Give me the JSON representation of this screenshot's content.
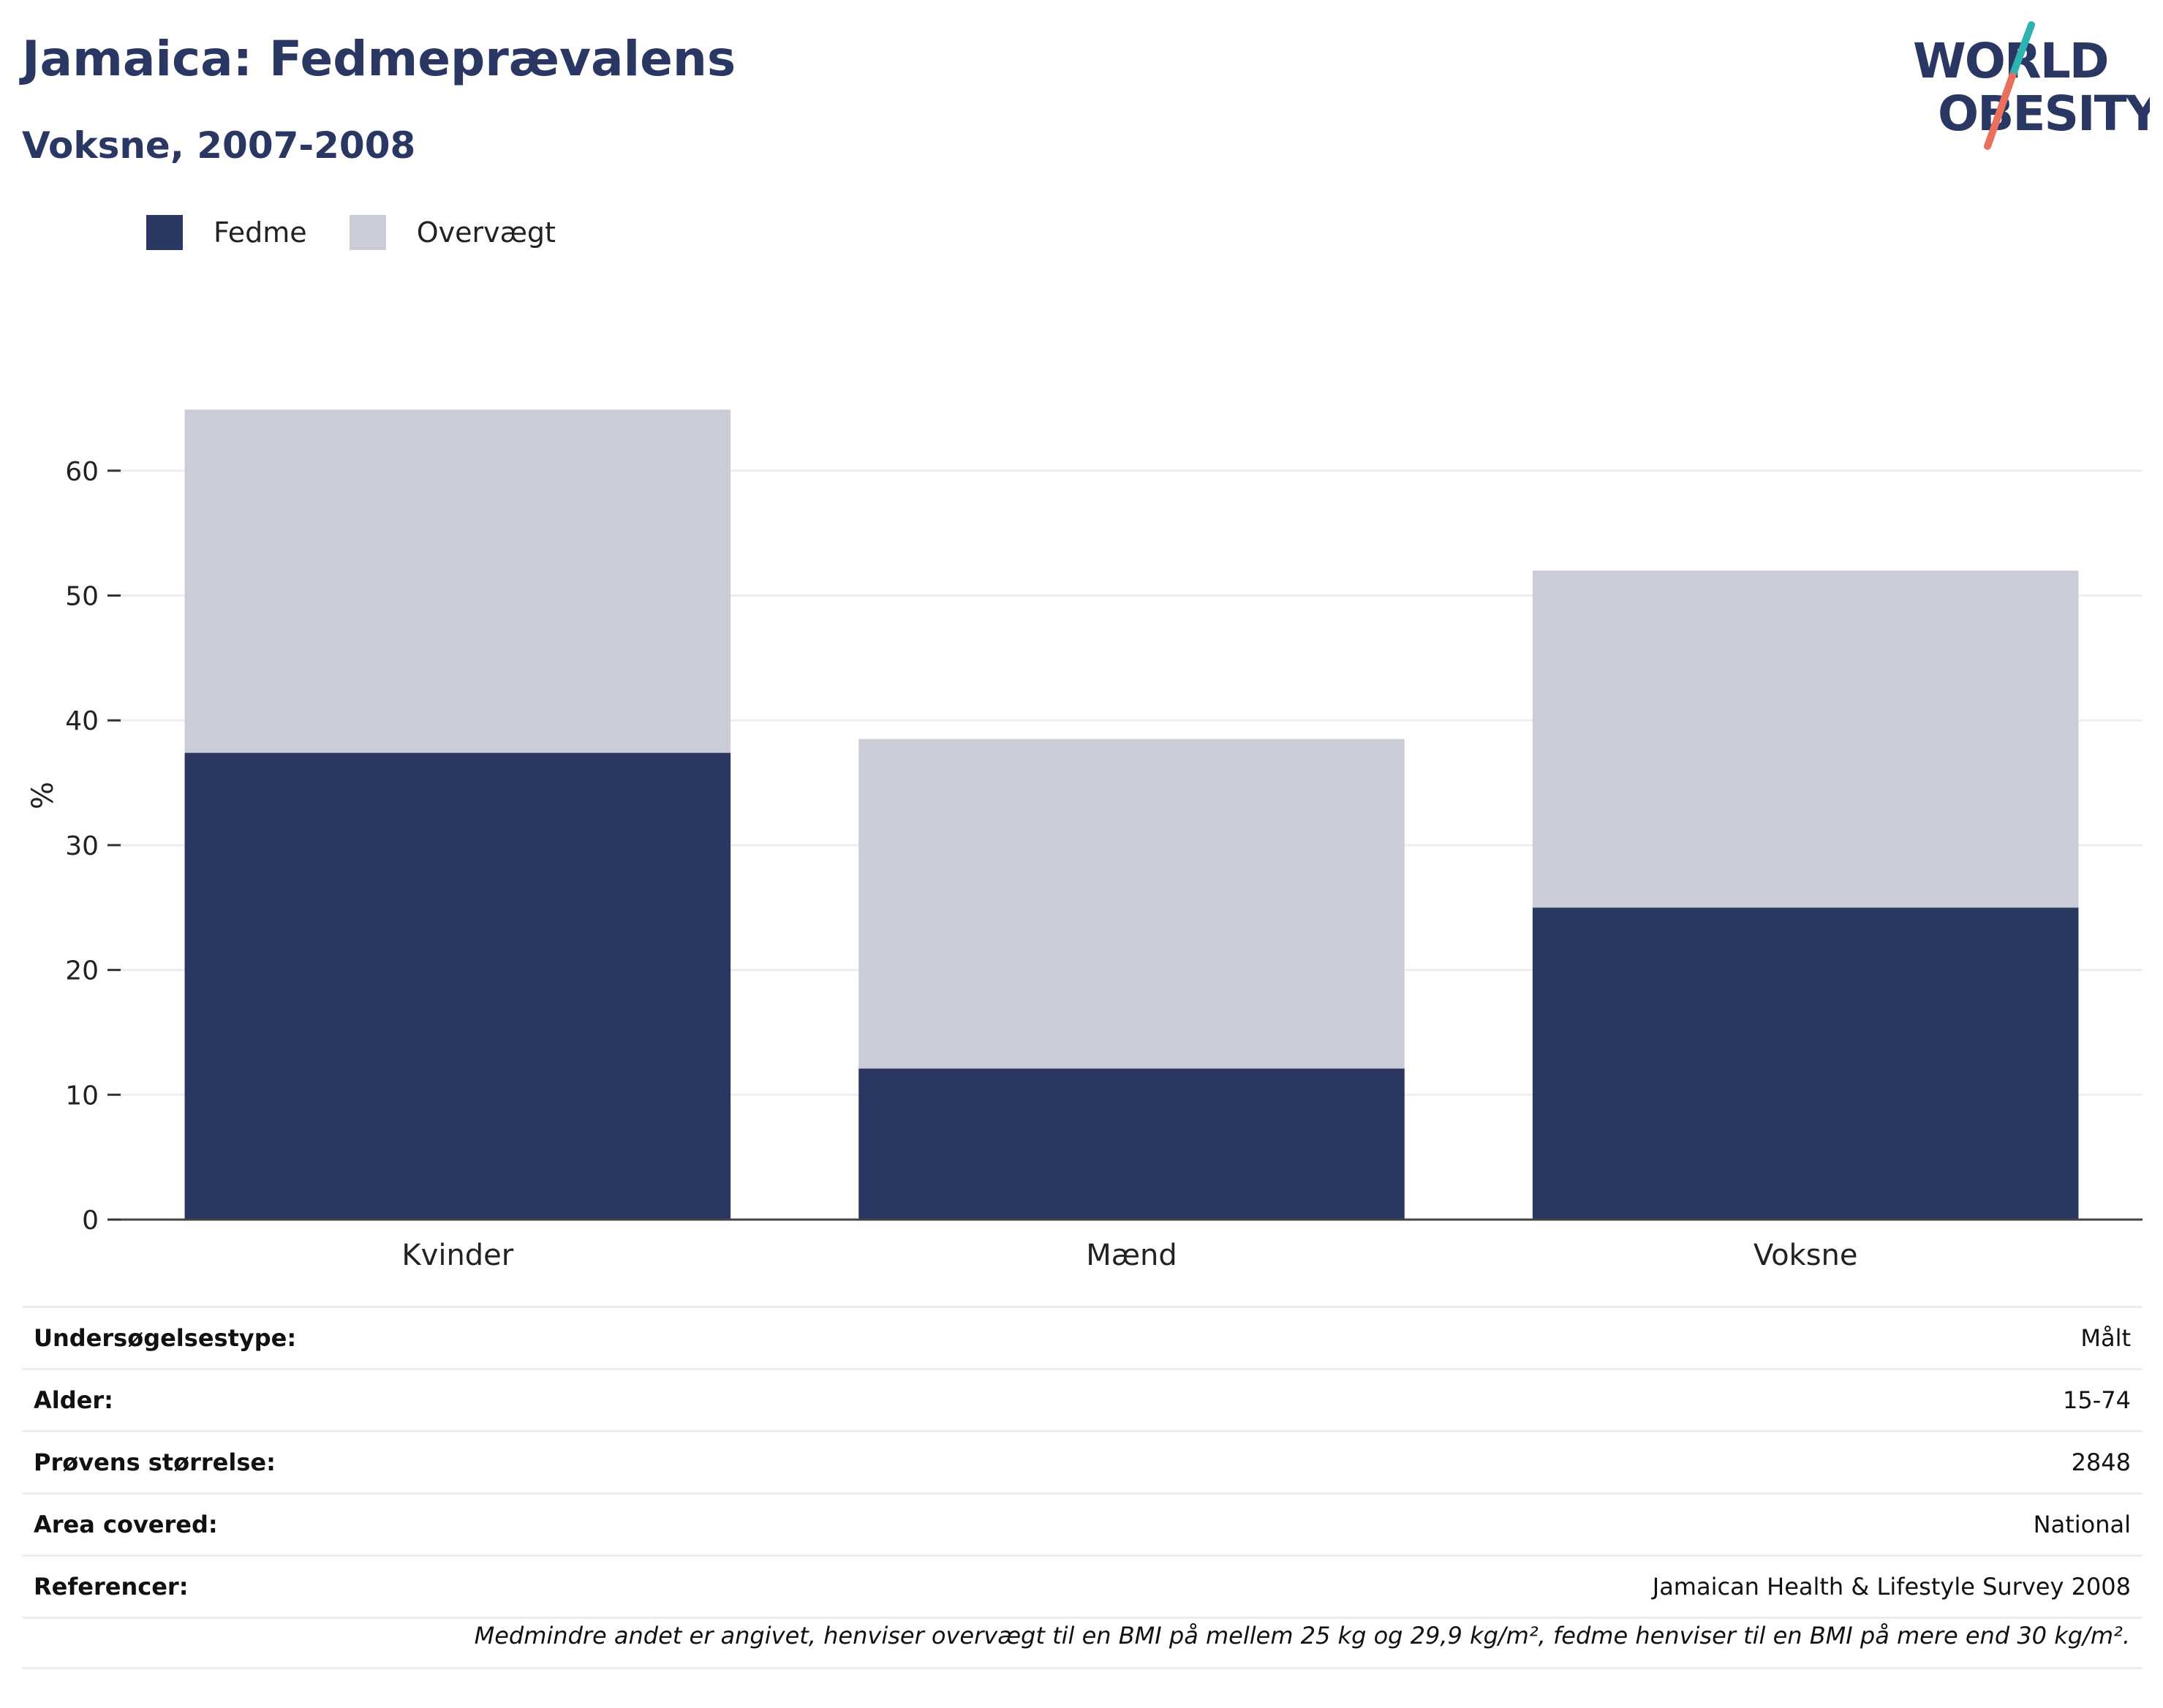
{
  "header": {
    "title": "Jamaica: Fedmeprævalens",
    "subtitle": "Voksne, 2007-2008"
  },
  "logo": {
    "line1": "WORLD",
    "line2": "OBESITY"
  },
  "legend": [
    {
      "label": "Fedme",
      "color": "#2a3763"
    },
    {
      "label": "Overvægt",
      "color": "#cacdd8"
    }
  ],
  "chart_data": {
    "type": "bar",
    "stacked": true,
    "categories": [
      "Kvinder",
      "Mænd",
      "Voksne"
    ],
    "series": [
      {
        "name": "Fedme",
        "values": [
          37.4,
          12.1,
          25.0
        ],
        "color": "#2a3763"
      },
      {
        "name": "Overvægt",
        "values": [
          27.5,
          26.4,
          27.0
        ],
        "color": "#cacdd8"
      }
    ],
    "ylabel": "%",
    "ylim": [
      0,
      70
    ],
    "yticks": [
      0,
      10,
      20,
      30,
      40,
      50,
      60
    ],
    "grid": true,
    "legend_position": "top-left"
  },
  "info": [
    {
      "key": "Undersøgelsestype:",
      "value": "Målt"
    },
    {
      "key": "Alder:",
      "value": "15-74"
    },
    {
      "key": "Prøvens størrelse:",
      "value": "2848"
    },
    {
      "key": "Area covered:",
      "value": "National"
    },
    {
      "key": "Referencer:",
      "value": "Jamaican Health & Lifestyle Survey 2008"
    }
  ],
  "footnote": "Medmindre andet er angivet, henviser overvægt til en BMI på mellem 25 kg og 29,9 kg/m², fedme henviser til en BMI på mere end 30 kg/m²."
}
